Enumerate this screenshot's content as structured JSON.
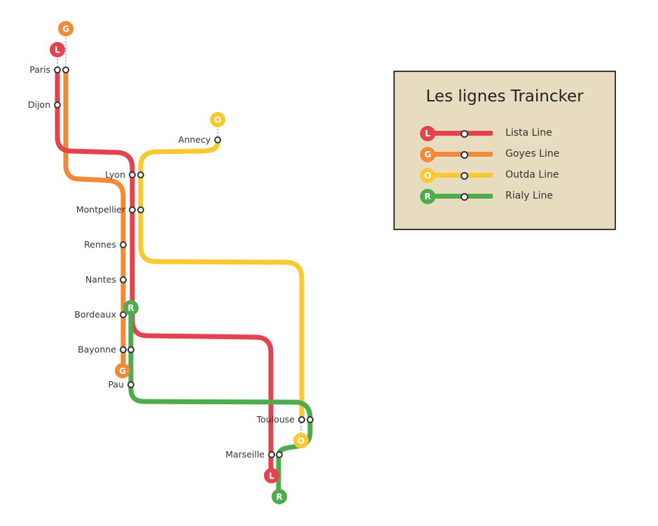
{
  "title": "Les lignes Traincker",
  "lines": [
    {
      "id": "L",
      "name": "Lista Line",
      "badge": "L",
      "color": "#e3434d"
    },
    {
      "id": "G",
      "name": "Goyes Line",
      "badge": "G",
      "color": "#f08a38"
    },
    {
      "id": "O",
      "name": "Outda Line",
      "badge": "O",
      "color": "#f9c932"
    },
    {
      "id": "R",
      "name": "Rialy Line",
      "badge": "R",
      "color": "#4fac4c"
    }
  ],
  "stations": {
    "paris": "Paris",
    "dijon": "Dijon",
    "annecy": "Annecy",
    "lyon": "Lyon",
    "montpellier": "Montpellier",
    "rennes": "Rennes",
    "nantes": "Nantes",
    "bordeaux": "Bordeaux",
    "bayonne": "Bayonne",
    "pau": "Pau",
    "toulouse": "Toulouse",
    "marseille": "Marseille"
  }
}
